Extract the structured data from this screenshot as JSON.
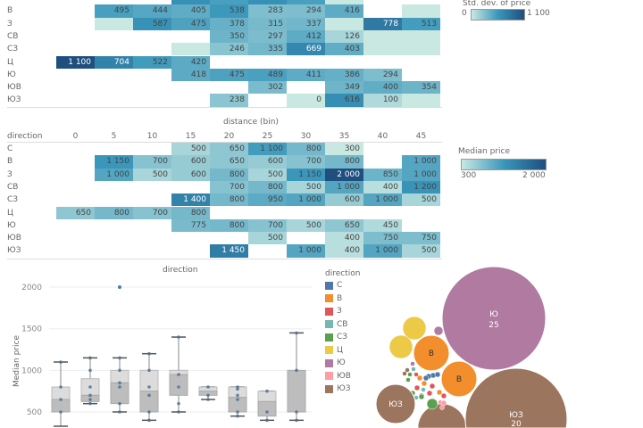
{
  "directions": [
    "С",
    "В",
    "З",
    "СВ",
    "СЗ",
    "Ц",
    "Ю",
    "ЮВ",
    "ЮЗ"
  ],
  "distance_bins": [
    "0",
    "5",
    "10",
    "15",
    "20",
    "25",
    "30",
    "35",
    "40",
    "45"
  ],
  "stddev_heatmap": {
    "legend_title": "Std. dev. of price",
    "legend_min": "0",
    "legend_max": "1 100",
    "rows": [
      [
        null,
        null,
        null,
        "~",
        "~",
        "~",
        "~",
        "",
        null,
        null
      ],
      [
        null,
        "495",
        "444",
        "405",
        "538",
        "283",
        "294",
        "416",
        null,
        ""
      ],
      [
        null,
        "",
        "587",
        "475",
        "378",
        "315",
        "337",
        "",
        "778",
        "513"
      ],
      [
        null,
        null,
        null,
        null,
        "350",
        "297",
        "412",
        "126",
        "",
        ""
      ],
      [
        null,
        null,
        null,
        "",
        "246",
        "335",
        "669",
        "403",
        "",
        ""
      ],
      [
        "1 100",
        "704",
        "522",
        "420",
        null,
        null,
        null,
        null,
        null,
        null
      ],
      [
        null,
        null,
        null,
        "418",
        "475",
        "489",
        "411",
        "386",
        "294",
        null
      ],
      [
        null,
        null,
        null,
        null,
        null,
        "302",
        null,
        "349",
        "400",
        "354"
      ],
      [
        null,
        null,
        null,
        null,
        "238",
        null,
        "0",
        "616",
        "100",
        ""
      ]
    ]
  },
  "median_heatmap": {
    "x_title": "distance (bin)",
    "row_header": "direction",
    "legend_title": "Median price",
    "legend_min": "300",
    "legend_max": "2 000",
    "rows": [
      [
        null,
        null,
        null,
        "500",
        "650",
        "1 100",
        "800",
        "300",
        null,
        null
      ],
      [
        null,
        "1 150",
        "700",
        "600",
        "650",
        "600",
        "700",
        "800",
        null,
        "1 000"
      ],
      [
        null,
        "1 000",
        "500",
        "600",
        "800",
        "500",
        "1 150",
        "2 000",
        "850",
        "1 000"
      ],
      [
        null,
        null,
        null,
        null,
        "700",
        "800",
        "500",
        "1 000",
        "400",
        "1 200"
      ],
      [
        null,
        null,
        null,
        "1 400",
        "800",
        "950",
        "1 000",
        "600",
        "1 000",
        "500"
      ],
      [
        "650",
        "800",
        "700",
        "800",
        null,
        null,
        null,
        null,
        null,
        null
      ],
      [
        null,
        null,
        null,
        "775",
        "800",
        "700",
        "500",
        "650",
        "450",
        null
      ],
      [
        null,
        null,
        null,
        null,
        null,
        "500",
        null,
        "400",
        "750",
        "750"
      ],
      [
        null,
        null,
        null,
        null,
        "1 450",
        null,
        "1 000",
        "400",
        "1 000",
        "500"
      ]
    ]
  },
  "boxplot": {
    "title": "direction",
    "y_label": "Median price",
    "y_ticks": [
      "2000",
      "1500",
      "1000",
      "500"
    ],
    "boxes": [
      {
        "min": 300,
        "q1": 500,
        "median": 650,
        "q3": 800,
        "max": 1100,
        "points": [
          500,
          650,
          800,
          1100
        ]
      },
      {
        "min": 600,
        "q1": 625,
        "median": 700,
        "q3": 900,
        "max": 1150,
        "points": [
          600,
          650,
          700,
          800,
          1000,
          1150
        ]
      },
      {
        "min": 500,
        "q1": 600,
        "median": 850,
        "q3": 1000,
        "max": 1150,
        "points": [
          500,
          600,
          800,
          850,
          1000,
          1150
        ],
        "outliers": [
          2000
        ]
      },
      {
        "min": 400,
        "q1": 500,
        "median": 750,
        "q3": 1000,
        "max": 1200,
        "points": [
          400,
          500,
          700,
          800,
          1000,
          1200
        ]
      },
      {
        "min": 500,
        "q1": 700,
        "median": 950,
        "q3": 1000,
        "max": 1400,
        "points": [
          500,
          600,
          800,
          950,
          1400
        ]
      },
      {
        "min": 650,
        "q1": 700,
        "median": 750,
        "q3": 800,
        "max": 800,
        "points": [
          650,
          700,
          800
        ]
      },
      {
        "min": 450,
        "q1": 500,
        "median": 675,
        "q3": 800,
        "max": 800,
        "points": [
          450,
          500,
          650,
          700,
          775,
          800
        ]
      },
      {
        "min": 400,
        "q1": 450,
        "median": 625,
        "q3": 750,
        "max": 750,
        "points": [
          400,
          500,
          750
        ]
      },
      {
        "min": 400,
        "q1": 500,
        "median": 1000,
        "q3": 1000,
        "max": 1450,
        "points": [
          400,
          500,
          1000,
          1450
        ]
      }
    ]
  },
  "bubble_legend": {
    "title": "direction",
    "items": [
      {
        "label": "С",
        "color": "#4e79a7"
      },
      {
        "label": "В",
        "color": "#f28e2b"
      },
      {
        "label": "З",
        "color": "#e15759"
      },
      {
        "label": "СВ",
        "color": "#76b7b2"
      },
      {
        "label": "СЗ",
        "color": "#59a14f"
      },
      {
        "label": "Ц",
        "color": "#edc948"
      },
      {
        "label": "Ю",
        "color": "#b07aa1"
      },
      {
        "label": "ЮВ",
        "color": "#ff9da7"
      },
      {
        "label": "ЮЗ",
        "color": "#9c755f"
      }
    ]
  },
  "bubbles": [
    {
      "direction": "Ю",
      "label": "Ю",
      "count": "25"
    },
    {
      "direction": "ЮЗ",
      "label": "ЮЗ",
      "count": "20"
    },
    {
      "direction": "ЮЗ",
      "label": "ЮЗ",
      "count": ""
    },
    {
      "direction": "В",
      "label": "В",
      "count": ""
    },
    {
      "direction": "В",
      "label": "В",
      "count": ""
    }
  ]
}
